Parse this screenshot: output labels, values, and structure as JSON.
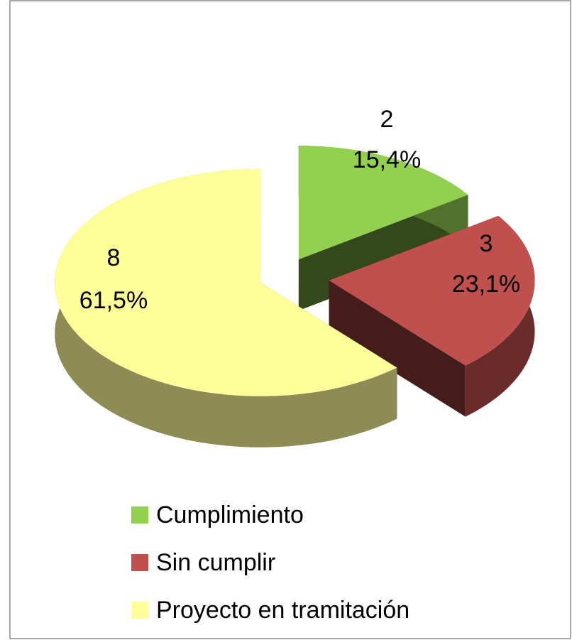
{
  "chart_data": {
    "type": "pie",
    "categories": [
      "Cumplimiento",
      "Sin cumplir",
      "Proyecto en tramitación"
    ],
    "values": [
      2,
      3,
      8
    ],
    "percent_labels": [
      "15,4%",
      "23,1%",
      "61,5%"
    ],
    "colors": [
      "#92d050",
      "#c0504d",
      "#ffff99"
    ],
    "legend": "bottom"
  }
}
